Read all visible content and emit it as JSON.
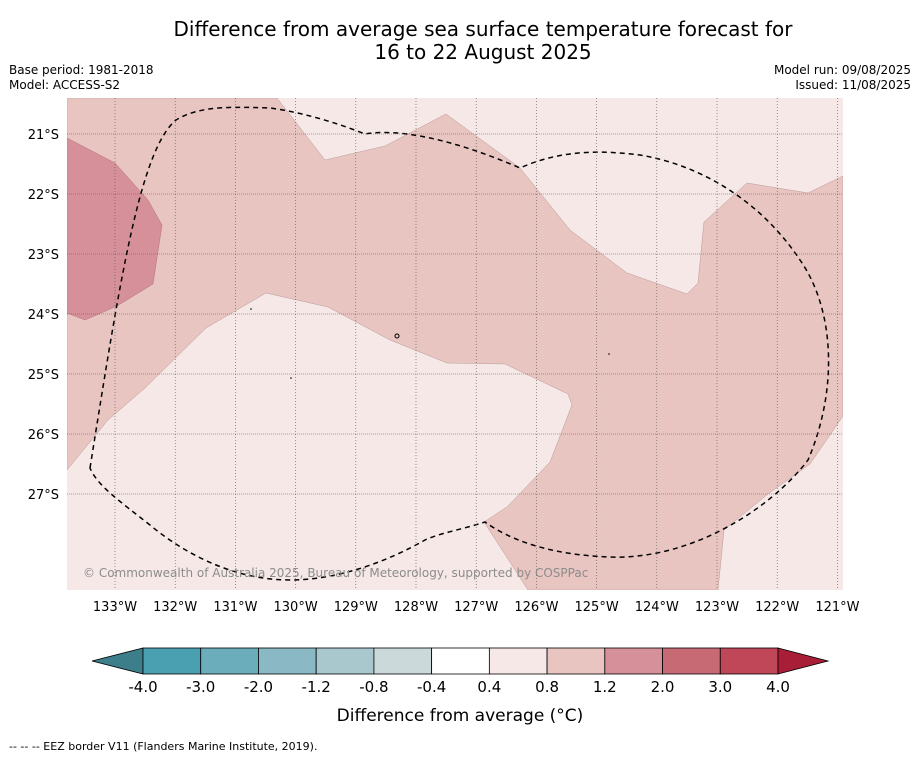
{
  "title_line1": "Difference from average sea surface temperature forecast for",
  "title_line2": "16 to 22 August 2025",
  "base_period": "Base period: 1981-2018",
  "model": "Model: ACCESS-S2",
  "model_run": "Model run: 09/08/2025",
  "issued": "Issued: 11/08/2025",
  "copyright": "© Commonwealth of Australia 2025, Bureau of Meteorology, supported by COSPPac",
  "footnote": "-- -- -- EEZ border V11 (Flanders Marine Institute, 2019).",
  "colorbar": {
    "title": "Difference from average (°C)",
    "labels": [
      "-4.0",
      "-3.0",
      "-2.0",
      "-1.2",
      "-0.8",
      "-0.4",
      "0.4",
      "0.8",
      "1.2",
      "2.0",
      "3.0",
      "4.0"
    ],
    "colors": [
      "#4aa0b0",
      "#6badbb",
      "#8ab8c4",
      "#a9c8ce",
      "#cbd9db",
      "#ffffff",
      "#f5e8e7",
      "#e8c5c1",
      "#d6909a",
      "#c86a74",
      "#bf4757"
    ],
    "low_extend_color": "#3c7e8a",
    "high_extend_color": "#a81e36"
  },
  "map": {
    "lon_labels": [
      "133°W",
      "132°W",
      "131°W",
      "130°W",
      "129°W",
      "128°W",
      "127°W",
      "126°W",
      "125°W",
      "124°W",
      "123°W",
      "122°W",
      "121°W"
    ],
    "lat_labels": [
      "21°S",
      "22°S",
      "23°S",
      "24°S",
      "25°S",
      "26°S",
      "27°S"
    ],
    "fill_colors": {
      "light": "#f5e8e7",
      "medium": "#e8c5c1",
      "strong": "#d6909a"
    }
  }
}
